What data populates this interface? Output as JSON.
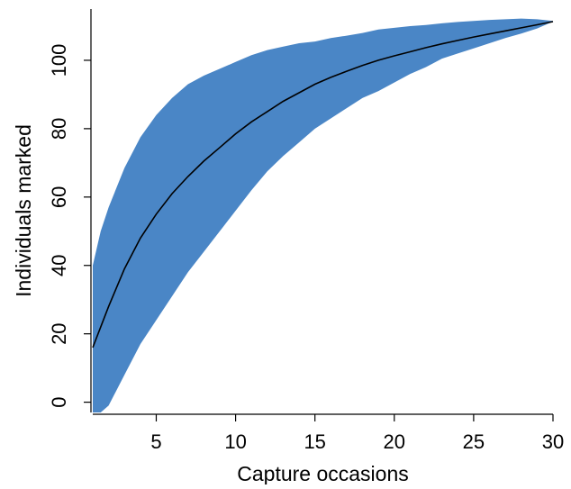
{
  "chart_data": {
    "type": "area",
    "title": "",
    "xlabel": "Capture occasions",
    "ylabel": "Individuals marked",
    "xlim": [
      1,
      30
    ],
    "ylim": [
      -3,
      115
    ],
    "xticks": [
      5,
      10,
      15,
      20,
      25,
      30
    ],
    "yticks": [
      0,
      20,
      40,
      60,
      80,
      100
    ],
    "grid": false,
    "legend": "none",
    "colors": {
      "band": "#4a86c6",
      "line": "#000000",
      "axis": "#000000"
    },
    "series": [
      {
        "type": "line",
        "x": [
          1,
          2,
          3,
          4,
          5,
          6,
          7,
          8,
          9,
          10,
          11,
          12,
          13,
          14,
          15,
          16,
          17,
          18,
          19,
          20,
          21,
          22,
          23,
          24,
          25,
          26,
          27,
          28,
          29,
          30
        ],
        "y": [
          16,
          28,
          39,
          48,
          55,
          61,
          66,
          70.5,
          74.5,
          78.5,
          82,
          85,
          88,
          90.5,
          93,
          95,
          96.8,
          98.5,
          100,
          101.3,
          102.5,
          103.7,
          104.8,
          105.8,
          106.8,
          107.7,
          108.6,
          109.5,
          110.4,
          111.3
        ]
      },
      {
        "type": "band",
        "x": [
          1,
          1.5,
          2,
          3,
          4,
          5,
          6,
          7,
          8,
          9,
          10,
          11,
          12,
          13,
          14,
          15,
          16,
          17,
          18,
          19,
          20,
          21,
          22,
          23,
          24,
          25,
          26,
          27,
          28,
          29,
          30
        ],
        "upper": [
          40,
          50,
          57,
          68.5,
          77.5,
          84,
          89,
          93,
          95.5,
          97.5,
          99.5,
          101.5,
          103,
          104,
          105,
          105.5,
          106.5,
          107.2,
          108,
          109,
          109.5,
          110,
          110.3,
          110.8,
          111.2,
          111.5,
          111.8,
          112,
          112.2,
          112,
          111.5
        ],
        "lower": [
          -3,
          -3,
          -3,
          -3,
          -3,
          -3,
          -3,
          -3,
          -3,
          -3,
          -3,
          -3,
          -3,
          -3,
          -3,
          -3,
          -3,
          -3,
          -3,
          -3,
          -3,
          -3,
          -3,
          -3,
          -3,
          -3,
          -3,
          -3,
          -3,
          -3,
          -3
        ],
        "lower_points": [
          [
            1,
            -3
          ],
          [
            1.5,
            -3
          ],
          [
            2,
            -1
          ],
          [
            3,
            8
          ],
          [
            4,
            17
          ],
          [
            5,
            24
          ],
          [
            6,
            31
          ],
          [
            7,
            38
          ],
          [
            8,
            44
          ],
          [
            9,
            50
          ],
          [
            10,
            56
          ],
          [
            11,
            62
          ],
          [
            12,
            67.5
          ],
          [
            13,
            72
          ],
          [
            14,
            76
          ],
          [
            15,
            80
          ],
          [
            16,
            83
          ],
          [
            17,
            86
          ],
          [
            18,
            89
          ],
          [
            19,
            91
          ],
          [
            20,
            93.5
          ],
          [
            21,
            96
          ],
          [
            22,
            98
          ],
          [
            23,
            100.5
          ],
          [
            24,
            102
          ],
          [
            25,
            103.5
          ],
          [
            26,
            105
          ],
          [
            27,
            106.5
          ],
          [
            28,
            107.8
          ],
          [
            29,
            109.3
          ],
          [
            30,
            111.3
          ]
        ]
      }
    ]
  }
}
